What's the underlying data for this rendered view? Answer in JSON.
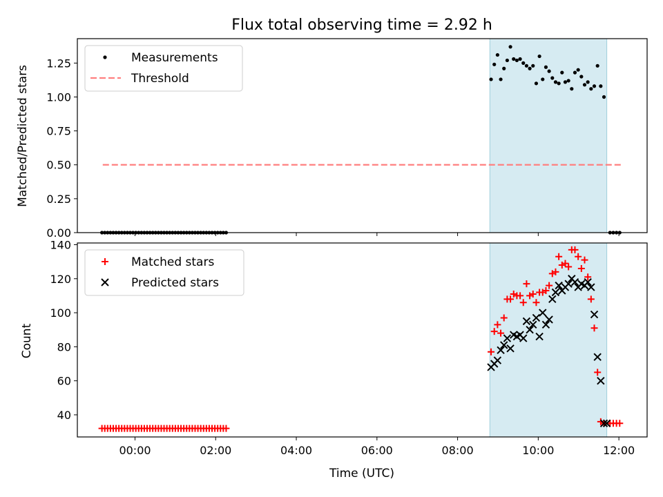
{
  "chart_data": [
    {
      "type": "scatter",
      "title": "Flux total observing time = 2.92 h",
      "xlabel": "",
      "ylabel": "Matched/Predicted stars",
      "ylim": [
        0,
        1.43
      ],
      "yticks": [
        "0.00",
        "0.25",
        "0.50",
        "0.75",
        "1.00",
        "1.25"
      ],
      "ytick_values": [
        0,
        0.25,
        0.5,
        0.75,
        1.0,
        1.25
      ],
      "xlim_hours": [
        -1.43,
        12.7
      ],
      "shaded_span_hours": [
        8.8,
        11.7
      ],
      "shaded_color": "#add8e6",
      "threshold": {
        "value": 0.5,
        "x_range_hours": [
          -0.8,
          12.05
        ],
        "color": "#ff7f7f"
      },
      "legend_position": "top-left",
      "legend": [
        {
          "label": "Measurements",
          "marker": "dot",
          "color": "#000000"
        },
        {
          "label": "Threshold",
          "marker": "dashed-line",
          "color": "#ff7f7f"
        }
      ],
      "series": [
        {
          "name": "Measurements",
          "x_hours": [
            -0.82,
            -0.75,
            -0.68,
            -0.61,
            -0.54,
            -0.47,
            -0.4,
            -0.33,
            -0.26,
            -0.19,
            -0.12,
            -0.05,
            0.02,
            0.09,
            0.16,
            0.23,
            0.3,
            0.37,
            0.44,
            0.51,
            0.58,
            0.65,
            0.72,
            0.79,
            0.86,
            0.93,
            1.0,
            1.07,
            1.14,
            1.21,
            1.28,
            1.35,
            1.42,
            1.49,
            1.56,
            1.63,
            1.7,
            1.77,
            1.84,
            1.91,
            1.98,
            2.05,
            2.12,
            2.19,
            2.26,
            8.83,
            8.91,
            8.99,
            9.07,
            9.15,
            9.23,
            9.31,
            9.39,
            9.47,
            9.55,
            9.63,
            9.71,
            9.79,
            9.87,
            9.95,
            10.03,
            10.11,
            10.19,
            10.27,
            10.35,
            10.43,
            10.51,
            10.59,
            10.67,
            10.75,
            10.83,
            10.91,
            10.99,
            11.07,
            11.15,
            11.23,
            11.31,
            11.39,
            11.47,
            11.55,
            11.63,
            11.78,
            11.86,
            11.94,
            12.02
          ],
          "y": [
            0,
            0,
            0,
            0,
            0,
            0,
            0,
            0,
            0,
            0,
            0,
            0,
            0,
            0,
            0,
            0,
            0,
            0,
            0,
            0,
            0,
            0,
            0,
            0,
            0,
            0,
            0,
            0,
            0,
            0,
            0,
            0,
            0,
            0,
            0,
            0,
            0,
            0,
            0,
            0,
            0,
            0,
            0,
            0,
            0,
            1.13,
            1.24,
            1.31,
            1.13,
            1.21,
            1.27,
            1.37,
            1.28,
            1.27,
            1.28,
            1.25,
            1.23,
            1.21,
            1.23,
            1.1,
            1.3,
            1.13,
            1.22,
            1.19,
            1.14,
            1.11,
            1.1,
            1.18,
            1.11,
            1.12,
            1.06,
            1.18,
            1.2,
            1.15,
            1.09,
            1.11,
            1.06,
            1.08,
            1.23,
            1.08,
            1.0,
            0,
            0,
            0,
            0
          ],
          "color": "#000000"
        }
      ]
    },
    {
      "type": "scatter",
      "title": "",
      "xlabel": "Time (UTC)",
      "ylabel": "Count",
      "ylim": [
        27,
        141
      ],
      "yticks": [
        "40",
        "60",
        "80",
        "100",
        "120",
        "140"
      ],
      "ytick_values": [
        40,
        60,
        80,
        100,
        120,
        140
      ],
      "xlim_hours": [
        -1.43,
        12.7
      ],
      "xticks": [
        "00:00",
        "02:00",
        "04:00",
        "06:00",
        "08:00",
        "10:00",
        "12:00"
      ],
      "xtick_hours": [
        0,
        2,
        4,
        6,
        8,
        10,
        12
      ],
      "shaded_span_hours": [
        8.8,
        11.7
      ],
      "legend_position": "top-left",
      "legend": [
        {
          "label": "Matched stars",
          "marker": "plus",
          "color": "#ff0000"
        },
        {
          "label": "Predicted stars",
          "marker": "x",
          "color": "#000000"
        }
      ],
      "series": [
        {
          "name": "Matched stars",
          "marker": "plus",
          "color": "#ff0000",
          "x_hours": [
            -0.82,
            -0.75,
            -0.68,
            -0.61,
            -0.54,
            -0.47,
            -0.4,
            -0.33,
            -0.26,
            -0.19,
            -0.12,
            -0.05,
            0.02,
            0.09,
            0.16,
            0.23,
            0.3,
            0.37,
            0.44,
            0.51,
            0.58,
            0.65,
            0.72,
            0.79,
            0.86,
            0.93,
            1.0,
            1.07,
            1.14,
            1.21,
            1.28,
            1.35,
            1.42,
            1.49,
            1.56,
            1.63,
            1.7,
            1.77,
            1.84,
            1.91,
            1.98,
            2.05,
            2.12,
            2.19,
            2.26,
            8.83,
            8.91,
            8.99,
            9.07,
            9.15,
            9.23,
            9.31,
            9.39,
            9.47,
            9.55,
            9.63,
            9.71,
            9.79,
            9.87,
            9.95,
            10.03,
            10.11,
            10.19,
            10.27,
            10.35,
            10.43,
            10.51,
            10.59,
            10.67,
            10.75,
            10.83,
            10.91,
            10.99,
            11.07,
            11.15,
            11.23,
            11.31,
            11.39,
            11.47,
            11.55,
            11.63,
            11.78,
            11.86,
            11.94,
            12.02
          ],
          "y": [
            32,
            32,
            32,
            32,
            32,
            32,
            32,
            32,
            32,
            32,
            32,
            32,
            32,
            32,
            32,
            32,
            32,
            32,
            32,
            32,
            32,
            32,
            32,
            32,
            32,
            32,
            32,
            32,
            32,
            32,
            32,
            32,
            32,
            32,
            32,
            32,
            32,
            32,
            32,
            32,
            32,
            32,
            32,
            32,
            32,
            77,
            89,
            93,
            88,
            97,
            108,
            108,
            111,
            110,
            110,
            106,
            117,
            110,
            111,
            106,
            112,
            112,
            113,
            116,
            123,
            124,
            133,
            128,
            129,
            127,
            137,
            137,
            133,
            126,
            131,
            121,
            108,
            91,
            65,
            36,
            35,
            35,
            35,
            35,
            35
          ]
        },
        {
          "name": "Predicted stars",
          "marker": "x",
          "color": "#000000",
          "x_hours": [
            8.83,
            8.91,
            8.99,
            9.07,
            9.15,
            9.23,
            9.31,
            9.39,
            9.47,
            9.55,
            9.63,
            9.71,
            9.79,
            9.87,
            9.95,
            10.03,
            10.11,
            10.19,
            10.27,
            10.35,
            10.43,
            10.51,
            10.59,
            10.67,
            10.75,
            10.83,
            10.91,
            10.99,
            11.07,
            11.15,
            11.23,
            11.31,
            11.39,
            11.47,
            11.55,
            11.63,
            11.7
          ],
          "y": [
            68,
            70,
            72,
            78,
            81,
            85,
            79,
            87,
            86,
            87,
            85,
            95,
            90,
            93,
            97,
            86,
            100,
            93,
            96,
            108,
            112,
            116,
            113,
            115,
            117,
            120,
            118,
            115,
            117,
            116,
            118,
            115,
            99,
            74,
            60,
            35,
            35
          ]
        }
      ]
    }
  ]
}
